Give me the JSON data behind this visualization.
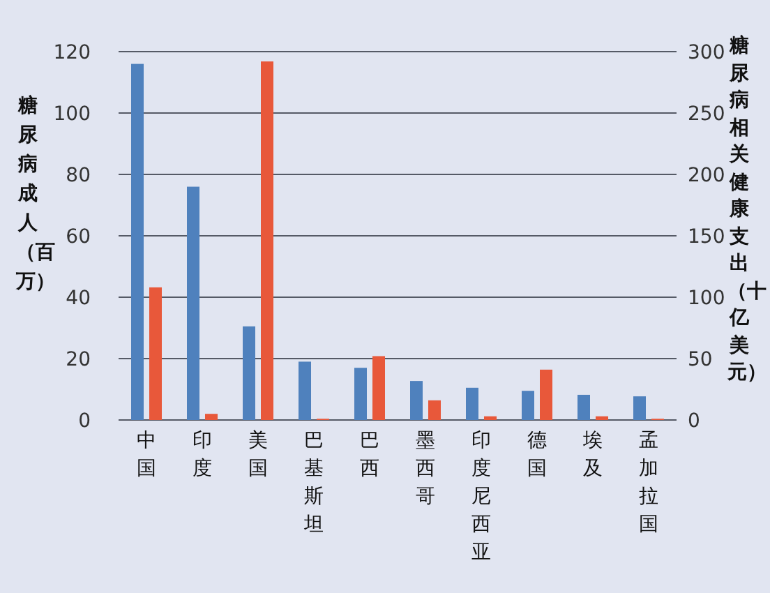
{
  "chart_data": {
    "type": "bar",
    "ylabel": "糖尿病成人（百万）",
    "y2label": "糖尿病相关健康支出（十亿美元）",
    "categories": [
      "中国",
      "印度",
      "美国",
      "巴基斯坦",
      "巴西",
      "墨西哥",
      "印度尼西亚",
      "德国",
      "埃及",
      "孟加拉国"
    ],
    "series": [
      {
        "color": "#4f81bd",
        "values": [
          116,
          76,
          30.5,
          19,
          17,
          12.7,
          10.5,
          9.5,
          8.2,
          7.7
        ]
      },
      {
        "color": "#e8583a",
        "axis": "y2",
        "values": [
          108,
          5,
          292,
          1,
          52,
          16,
          3,
          41,
          3,
          1
        ]
      }
    ],
    "ylim": [
      0,
      120
    ],
    "yticks": [
      0,
      20,
      40,
      60,
      80,
      100,
      120
    ],
    "y2lim": [
      0,
      300
    ],
    "y2ticks": [
      0,
      50,
      100,
      150,
      200,
      250,
      300
    ],
    "grid": "y"
  }
}
